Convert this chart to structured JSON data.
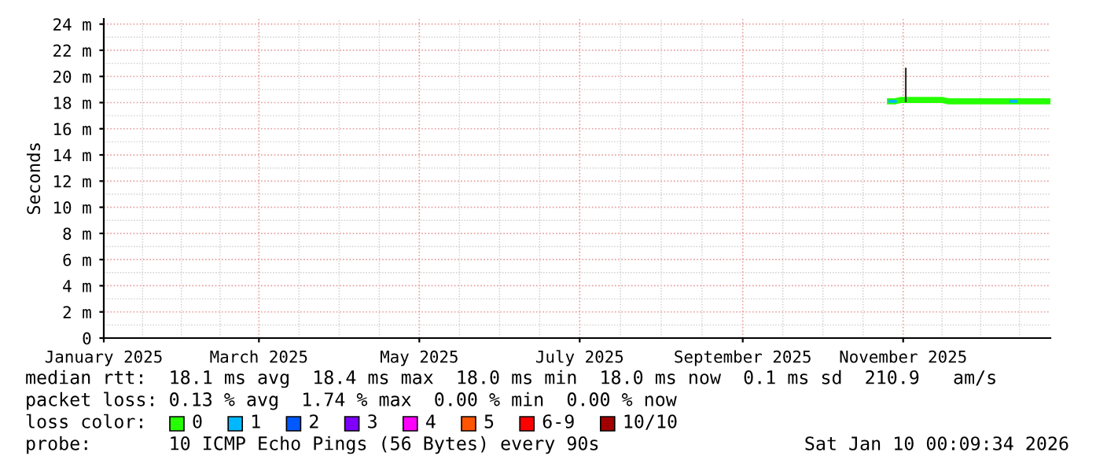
{
  "chart_data": {
    "type": "line",
    "ylabel": "Seconds",
    "legend_title": "loss color:",
    "legend": "bottom",
    "grid": true,
    "xlim": [
      "2025-01-01",
      "2025-12-27"
    ],
    "xticks": [
      {
        "value": "2025-01-01",
        "label": "January 2025"
      },
      {
        "value": "2025-03-01",
        "label": "March 2025"
      },
      {
        "value": "2025-05-01",
        "label": "May 2025"
      },
      {
        "value": "2025-07-01",
        "label": "July 2025"
      },
      {
        "value": "2025-09-01",
        "label": "September 2025"
      },
      {
        "value": "2025-11-01",
        "label": "November 2025"
      }
    ],
    "ylim": [
      0,
      24.4
    ],
    "yticks": [
      0,
      {
        "value": 2,
        "label": "2 m"
      },
      {
        "value": 4,
        "label": "4 m"
      },
      {
        "value": 6,
        "label": "6 m"
      },
      {
        "value": 8,
        "label": "8 m"
      },
      {
        "value": 10,
        "label": "10 m"
      },
      {
        "value": 12,
        "label": "12 m"
      },
      {
        "value": 14,
        "label": "14 m"
      },
      {
        "value": 16,
        "label": "16 m"
      },
      {
        "value": 18,
        "label": "18 m"
      },
      {
        "value": 20,
        "label": "20 m"
      },
      {
        "value": 22,
        "label": "22 m"
      },
      {
        "value": 24,
        "label": "24 m"
      }
    ],
    "x": [
      "2025-10-27",
      "2025-10-29",
      "2025-10-31",
      "2025-11-02",
      "2025-11-04",
      "2025-11-06",
      "2025-11-08",
      "2025-11-10",
      "2025-11-12",
      "2025-11-14",
      "2025-11-16",
      "2025-11-18",
      "2025-11-20",
      "2025-11-22",
      "2025-11-24",
      "2025-11-26",
      "2025-11-28",
      "2025-11-30",
      "2025-12-02",
      "2025-12-04",
      "2025-12-06",
      "2025-12-08",
      "2025-12-10",
      "2025-12-12",
      "2025-12-14",
      "2025-12-16",
      "2025-12-18",
      "2025-12-20",
      "2025-12-22",
      "2025-12-24",
      "2025-12-26"
    ],
    "series": [
      {
        "name": "0",
        "color": "#26ff00",
        "values": [
          18.1,
          18.1,
          18.2,
          18.2,
          18.2,
          18.2,
          18.2,
          18.2,
          18.2,
          18.2,
          18.2,
          18.1,
          18.1,
          18.1,
          18.1,
          18.1,
          18.1,
          18.1,
          18.1,
          18.1,
          18.1,
          18.1,
          18.1,
          18.1,
          18.1,
          18.1,
          18.1,
          18.1,
          18.1,
          18.1,
          18.1
        ]
      },
      {
        "name": "1",
        "color": "#00b8ff",
        "values": [
          18.1,
          18.1,
          null,
          null,
          null,
          null,
          null,
          null,
          null,
          null,
          null,
          null,
          null,
          null,
          null,
          null,
          null,
          null,
          null,
          null,
          null,
          null,
          null,
          18.1,
          18.1,
          null,
          null,
          null,
          null,
          null,
          null
        ]
      },
      {
        "name": "2",
        "color": "#0059ff",
        "values": [
          null,
          null,
          null,
          null,
          null,
          null,
          null,
          null,
          null,
          null,
          null,
          null,
          null,
          null,
          null,
          null,
          null,
          null,
          null,
          null,
          null,
          null,
          null,
          null,
          null,
          null,
          null,
          null,
          null,
          null,
          null
        ]
      },
      {
        "name": "3",
        "color": "#7e00ff",
        "values": [
          null,
          null,
          null,
          null,
          null,
          null,
          null,
          null,
          null,
          null,
          null,
          null,
          null,
          null,
          null,
          null,
          null,
          null,
          null,
          null,
          null,
          null,
          null,
          null,
          null,
          null,
          null,
          null,
          null,
          null,
          null
        ]
      },
      {
        "name": "4",
        "color": "#ff00ff",
        "values": [
          null,
          null,
          null,
          null,
          null,
          null,
          null,
          null,
          null,
          null,
          null,
          null,
          null,
          null,
          null,
          null,
          null,
          null,
          null,
          null,
          null,
          null,
          null,
          null,
          null,
          null,
          null,
          null,
          null,
          null,
          null
        ]
      },
      {
        "name": "5",
        "color": "#ff5500",
        "values": [
          null,
          null,
          null,
          null,
          null,
          null,
          null,
          null,
          null,
          null,
          null,
          null,
          null,
          null,
          null,
          null,
          null,
          null,
          null,
          null,
          null,
          null,
          null,
          null,
          null,
          null,
          null,
          null,
          null,
          null,
          null
        ]
      },
      {
        "name": "6-9",
        "color": "#ff0000",
        "values": [
          null,
          null,
          null,
          null,
          null,
          null,
          null,
          null,
          null,
          null,
          null,
          null,
          null,
          null,
          null,
          null,
          null,
          null,
          null,
          null,
          null,
          null,
          null,
          null,
          null,
          null,
          null,
          null,
          null,
          null,
          null
        ]
      },
      {
        "name": "10/10",
        "color": "#a10000",
        "values": [
          null,
          null,
          null,
          null,
          null,
          null,
          null,
          null,
          null,
          null,
          null,
          null,
          null,
          null,
          null,
          null,
          null,
          null,
          null,
          null,
          null,
          null,
          null,
          null,
          null,
          null,
          null,
          null,
          null,
          null,
          null
        ]
      },
      {
        "x": [
          "2025-11-02",
          "2025-11-02"
        ],
        "color": "#333333",
        "values": [
          18.1,
          20.6
        ]
      }
    ],
    "annotations": [
      "median rtt:  18.1 ms avg  18.4 ms max  18.0 ms min  18.0 ms now  0.1 ms sd  210.9   am/s",
      "packet loss: 0.13 % avg  1.74 % max  0.00 % min  0.00 % now",
      "probe:       10 ICMP Echo Pings (56 Bytes) every 90s",
      "Sat Jan 10 00:09:34 2026"
    ]
  }
}
